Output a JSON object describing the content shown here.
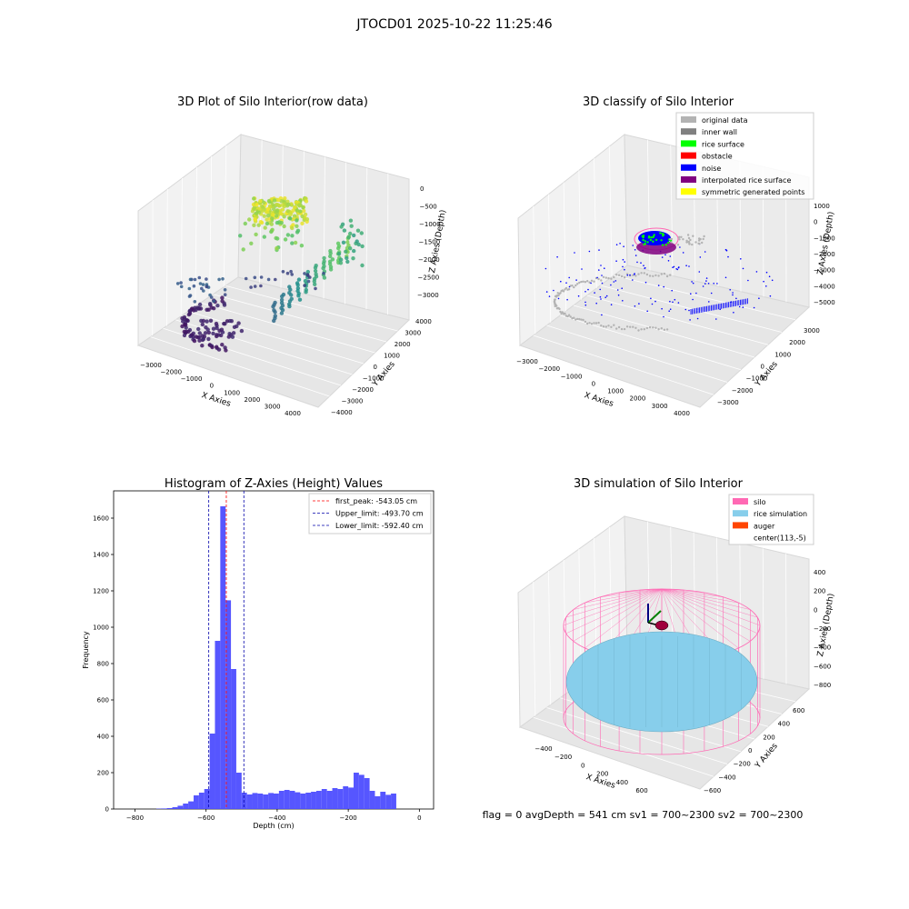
{
  "figure": {
    "suptitle": "JTOCD01 2025-10-22 11:25:46",
    "status_line": "flag = 0     avgDepth = 541 cm  sv1 = 700~2300  sv2 = 700~2300"
  },
  "colors": {
    "hist_bar": "#4d4dff",
    "first_peak": "#ff0000",
    "limit": "#0000aa",
    "original": "#b3b3b3",
    "inner_wall": "#808080",
    "rice_surface": "#00ff00",
    "obstacle": "#ff0000",
    "noise": "#0000ff",
    "interpolated": "#800080",
    "symmetric": "#ffff00",
    "silo": "#ff69b4",
    "rice_sim": "#87ceeb",
    "auger": "#ff4500"
  },
  "chart_data": [
    {
      "type": "scatter",
      "projection": "3d",
      "title": "3D Plot of Silo Interior(row data)",
      "xlabel": "X Axies",
      "ylabel": "Y Axies",
      "zlabel": "Z Axies (Depth)",
      "xticks": [
        "−3000",
        "−2000",
        "−1000",
        "0",
        "1000",
        "2000",
        "3000",
        "4000"
      ],
      "yticks": [
        "4000",
        "3000",
        "2000",
        "1000",
        "0",
        "−1000",
        "−2000",
        "−3000",
        "−4000"
      ],
      "zticks": [
        "0",
        "−500",
        "−1000",
        "−1500",
        "−2000",
        "−2500",
        "−3000"
      ],
      "colormap": "viridis"
    },
    {
      "type": "scatter",
      "projection": "3d",
      "title": "3D classify of Silo Interior",
      "xlabel": "X Axies",
      "ylabel": "Y Axies",
      "zlabel": "Z Axies (Depth)",
      "xticks": [
        "−3000",
        "−2000",
        "−1000",
        "0",
        "1000",
        "2000",
        "3000",
        "4000"
      ],
      "yticks": [
        "3000",
        "2000",
        "1000",
        "0",
        "−1000",
        "−2000",
        "−3000"
      ],
      "zticks": [
        "1000",
        "0",
        "−1000",
        "−2000",
        "−3000",
        "−4000",
        "−5000"
      ],
      "legend": [
        "original data",
        "inner wall",
        "rice surface",
        "obstacle",
        "noise",
        "interpolated rice surface",
        "symmetric generated points"
      ],
      "legend_position": "top-right"
    },
    {
      "type": "bar",
      "title": "Histogram of Z-Axies (Height) Values",
      "xlabel": "Depth (cm)",
      "ylabel": "Frequency",
      "xlim": [
        -860,
        40
      ],
      "ylim": [
        0,
        1750
      ],
      "xticks": [
        -800,
        -600,
        -400,
        -200,
        0
      ],
      "xtick_labels": [
        "−800",
        "−600",
        "−400",
        "−200",
        "0"
      ],
      "yticks": [
        0,
        200,
        400,
        600,
        800,
        1000,
        1200,
        1400,
        1600
      ],
      "bin_start": -740,
      "bin_width": 15,
      "values": [
        2,
        3,
        5,
        10,
        18,
        30,
        42,
        75,
        90,
        110,
        415,
        925,
        1665,
        1148,
        770,
        200,
        90,
        80,
        88,
        85,
        80,
        88,
        85,
        100,
        105,
        100,
        92,
        85,
        90,
        95,
        100,
        110,
        100,
        115,
        110,
        125,
        118,
        200,
        188,
        170,
        100,
        70,
        95,
        78,
        85
      ],
      "vlines": [
        {
          "label": "first_peak: -543.05 cm",
          "x": -543.05,
          "color": "#ff0000"
        },
        {
          "label": "Upper_limit: -493.70 cm",
          "x": -493.7,
          "color": "#0000aa"
        },
        {
          "label": "Lower_limit: -592.40 cm",
          "x": -592.4,
          "color": "#0000aa"
        }
      ],
      "legend_position": "top-right"
    },
    {
      "type": "scatter",
      "projection": "3d",
      "title": "3D simulation of Silo Interior",
      "xlabel": "X Axies",
      "ylabel": "Y Axies",
      "zlabel": "Z Axies (Depth)",
      "xticks": [
        "−400",
        "−200",
        "0",
        "200",
        "400",
        "600"
      ],
      "yticks": [
        "600",
        "400",
        "200",
        "0",
        "−200",
        "−400",
        "−600"
      ],
      "zticks": [
        "400",
        "200",
        "0",
        "−200",
        "−400",
        "−600",
        "−800"
      ],
      "legend": [
        "silo",
        "rice simulation",
        "auger",
        "center(113,-5)"
      ],
      "legend_position": "top-right"
    }
  ]
}
